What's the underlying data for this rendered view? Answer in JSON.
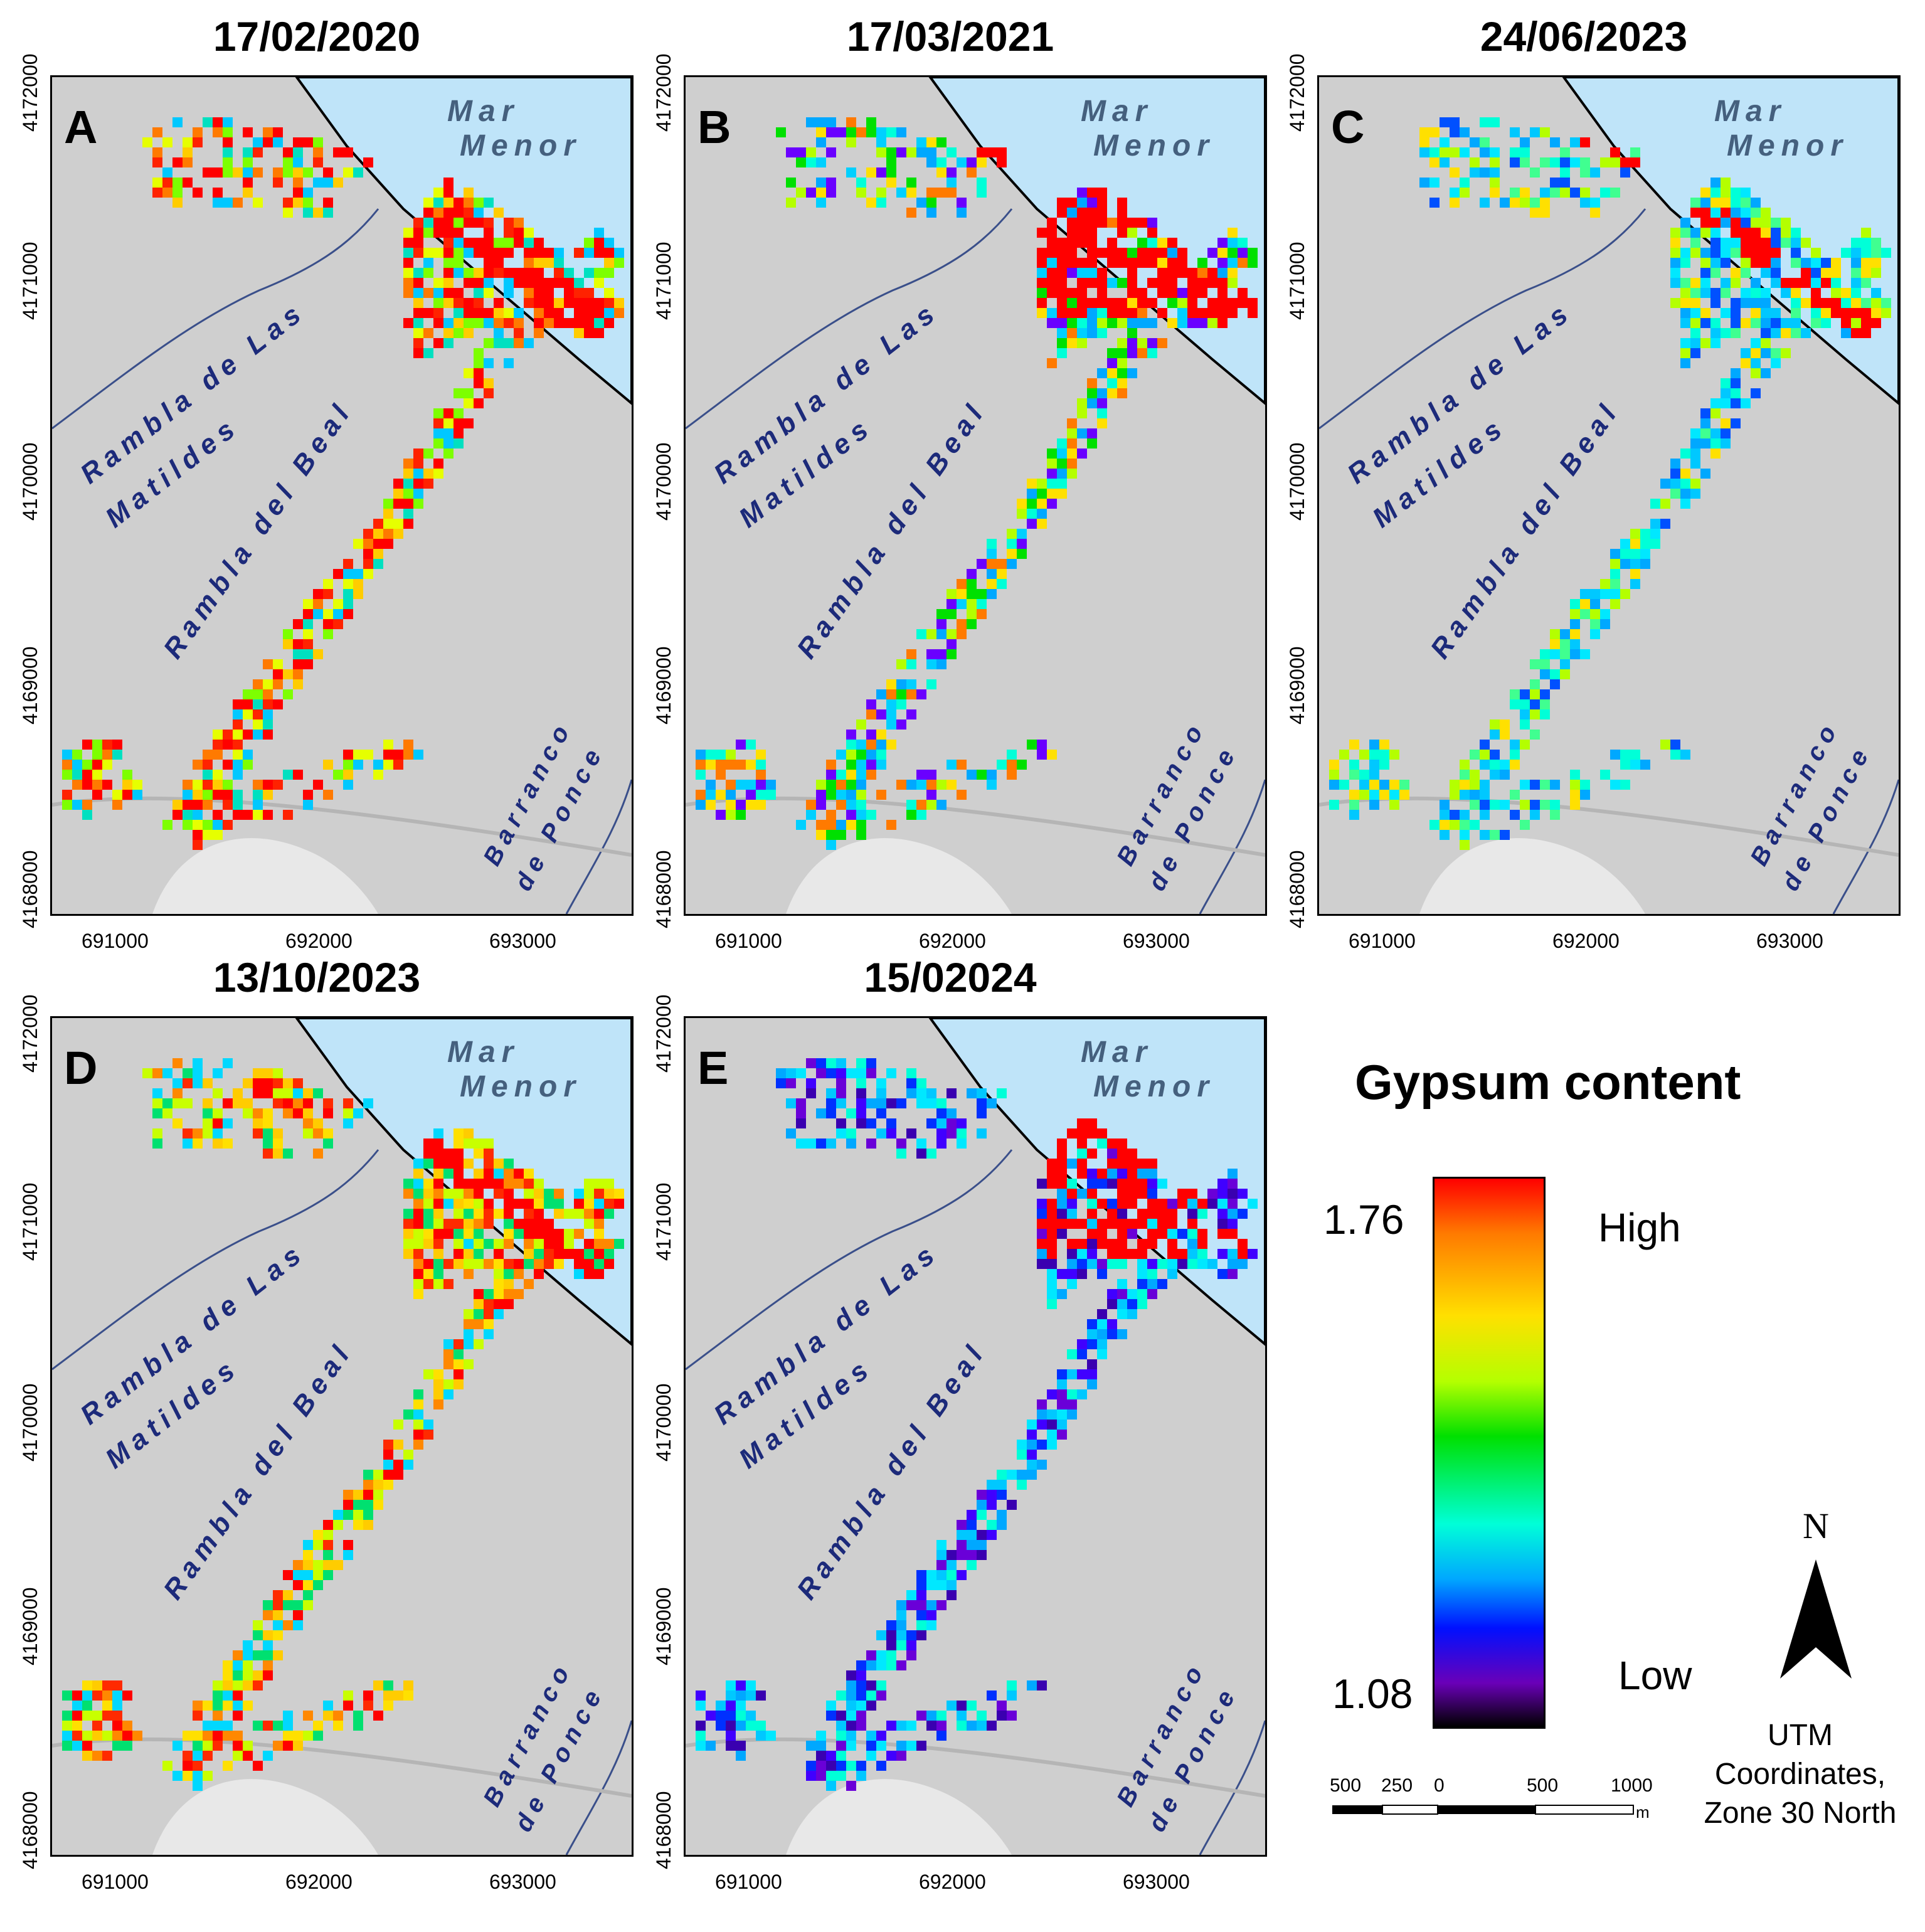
{
  "panels": [
    {
      "id": "A",
      "title": "17/02/2020",
      "letter": "A",
      "profile": "high"
    },
    {
      "id": "B",
      "title": "17/03/2021",
      "letter": "B",
      "profile": "mid"
    },
    {
      "id": "C",
      "title": "24/06/2023",
      "letter": "C",
      "profile": "low"
    },
    {
      "id": "D",
      "title": "13/10/2023",
      "letter": "D",
      "profile": "high2"
    },
    {
      "id": "E",
      "title": "15/02024",
      "letter": "E",
      "profile": "verylow"
    }
  ],
  "map_labels": {
    "sea_line1": "Mar",
    "sea_line2": "Menor",
    "rambla_matildes_line1": "Rambla de Las",
    "rambla_matildes_line2": "Matildes",
    "rambla_beal": "Rambla del Beal",
    "barranco_line1": "Barranco",
    "barranco_line2": "de Ponce"
  },
  "axes": {
    "x_ticks": [
      "691000",
      "692000",
      "693000"
    ],
    "y_ticks": [
      "4172000",
      "4171000",
      "4170000",
      "4169000",
      "4168000"
    ]
  },
  "legend": {
    "title": "Gypsum content",
    "max_value": "1.76",
    "min_value": "1.08",
    "high_label": "High",
    "low_label": "Low",
    "colors": [
      "#ff0000",
      "#ff7a00",
      "#ffe000",
      "#b4ff00",
      "#00e000",
      "#00ffd8",
      "#00a8ff",
      "#0010ff",
      "#6a00b8",
      "#000000"
    ]
  },
  "north_arrow": {
    "label": "N"
  },
  "coordinate_note": {
    "line1": "UTM",
    "line2": "Coordinates,",
    "line3": "Zone 30 North"
  },
  "scale_bar": {
    "labels": [
      "500",
      "250",
      "0",
      "500",
      "1000"
    ],
    "unit": "m"
  },
  "colors": {
    "sea": "#bfe4f9",
    "land": "#cfcfcf",
    "label_blue": "#1c2a7a",
    "sea_label": "#45607e"
  }
}
